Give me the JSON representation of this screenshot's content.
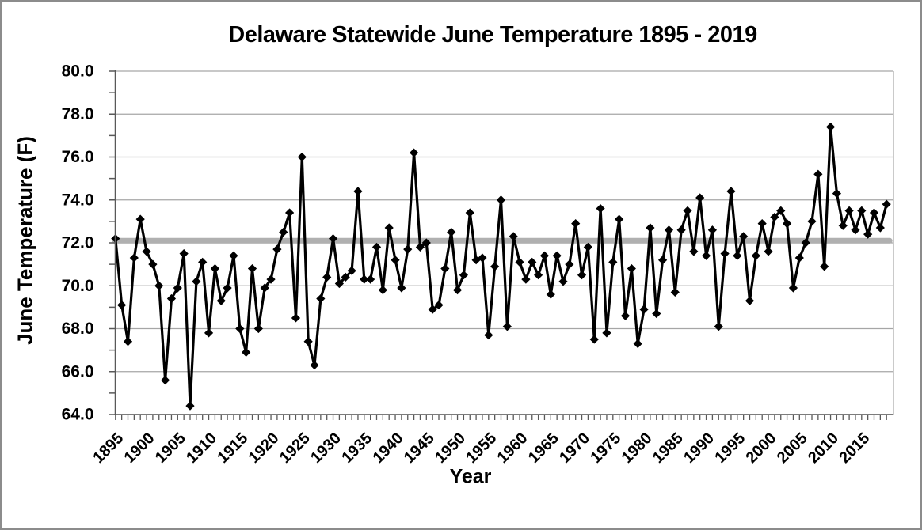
{
  "chart_data": {
    "type": "line",
    "title": "Delaware Statewide June Temperature 1895 - 2019",
    "xlabel": "Year",
    "ylabel": "June Temperature (F)",
    "ylim": [
      64.0,
      80.0
    ],
    "y_major_step": 2,
    "y_minor_step": 1,
    "y_tick_labels": [
      "80.0",
      "78.0",
      "76.0",
      "74.0",
      "72.0",
      "70.0",
      "68.0",
      "66.0",
      "64.0"
    ],
    "x_label_step": 5,
    "x_tick_labels": [
      "1895",
      "1900",
      "1905",
      "1910",
      "1915",
      "1920",
      "1925",
      "1930",
      "1935",
      "1940",
      "1945",
      "1950",
      "1955",
      "1960",
      "1965",
      "1970",
      "1975",
      "1980",
      "1985",
      "1990",
      "1995",
      "2000",
      "2005",
      "2010",
      "2015"
    ],
    "grid": true,
    "legend": "none",
    "marker": "diamond",
    "series_color": "#000000",
    "grid_color": "#a6a6a6",
    "axis_color": "#595959",
    "mean_line": {
      "value": 72.1,
      "color": "#b0b0b0"
    },
    "x": [
      1895,
      1896,
      1897,
      1898,
      1899,
      1900,
      1901,
      1902,
      1903,
      1904,
      1905,
      1906,
      1907,
      1908,
      1909,
      1910,
      1911,
      1912,
      1913,
      1914,
      1915,
      1916,
      1917,
      1918,
      1919,
      1920,
      1921,
      1922,
      1923,
      1924,
      1925,
      1926,
      1927,
      1928,
      1929,
      1930,
      1931,
      1932,
      1933,
      1934,
      1935,
      1936,
      1937,
      1938,
      1939,
      1940,
      1941,
      1942,
      1943,
      1944,
      1945,
      1946,
      1947,
      1948,
      1949,
      1950,
      1951,
      1952,
      1953,
      1954,
      1955,
      1956,
      1957,
      1958,
      1959,
      1960,
      1961,
      1962,
      1963,
      1964,
      1965,
      1966,
      1967,
      1968,
      1969,
      1970,
      1971,
      1972,
      1973,
      1974,
      1975,
      1976,
      1977,
      1978,
      1979,
      1980,
      1981,
      1982,
      1983,
      1984,
      1985,
      1986,
      1987,
      1988,
      1989,
      1990,
      1991,
      1992,
      1993,
      1994,
      1995,
      1996,
      1997,
      1998,
      1999,
      2000,
      2001,
      2002,
      2003,
      2004,
      2005,
      2006,
      2007,
      2008,
      2009,
      2010,
      2011,
      2012,
      2013,
      2014,
      2015,
      2016,
      2017,
      2018,
      2019
    ],
    "values": [
      72.2,
      69.1,
      67.4,
      71.3,
      73.1,
      71.6,
      71.0,
      70.0,
      65.6,
      69.4,
      69.9,
      71.5,
      64.4,
      70.2,
      71.1,
      67.8,
      70.8,
      69.3,
      69.9,
      71.4,
      68.0,
      66.9,
      70.8,
      68.0,
      69.9,
      70.3,
      71.7,
      72.5,
      73.4,
      68.5,
      76.0,
      67.4,
      66.3,
      69.4,
      70.4,
      72.2,
      70.1,
      70.4,
      70.7,
      74.4,
      70.3,
      70.3,
      71.8,
      69.8,
      72.7,
      71.2,
      69.9,
      71.7,
      76.2,
      71.8,
      72.0,
      68.9,
      69.1,
      70.8,
      72.5,
      69.8,
      70.5,
      73.4,
      71.2,
      71.3,
      67.7,
      70.9,
      74.0,
      68.1,
      72.3,
      71.1,
      70.3,
      71.1,
      70.5,
      71.4,
      69.6,
      71.4,
      70.2,
      71.0,
      72.9,
      70.5,
      71.8,
      67.5,
      73.6,
      67.8,
      71.1,
      73.1,
      68.6,
      70.8,
      67.3,
      68.9,
      72.7,
      68.7,
      71.2,
      72.6,
      69.7,
      72.6,
      73.5,
      71.6,
      74.1,
      71.4,
      72.6,
      68.1,
      71.5,
      74.4,
      71.4,
      72.3,
      69.3,
      71.4,
      72.9,
      71.6,
      73.2,
      73.5,
      72.9,
      69.9,
      71.3,
      72.0,
      73.0,
      75.2,
      70.9,
      77.4,
      74.3,
      72.8,
      73.5,
      72.6,
      73.5,
      72.4,
      73.4,
      72.7,
      73.8
    ]
  }
}
